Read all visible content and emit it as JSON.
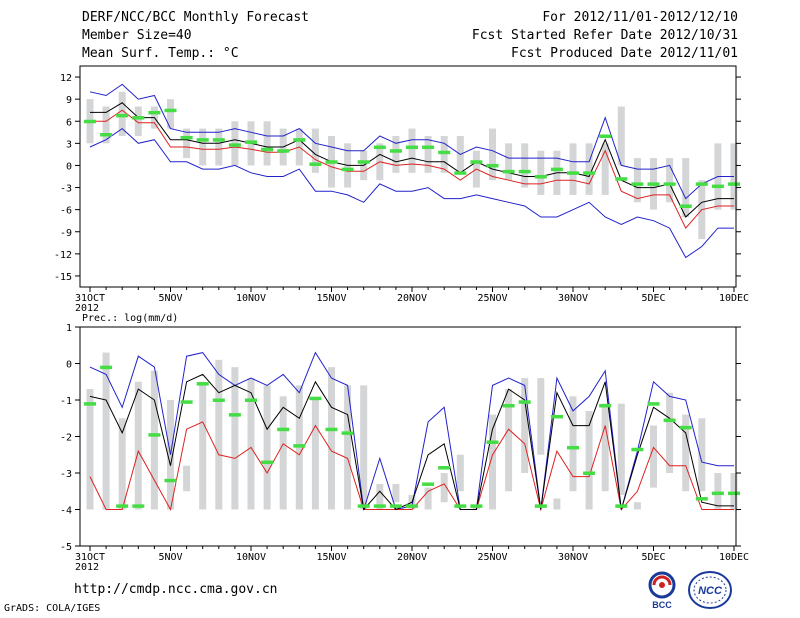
{
  "header": {
    "title": "DERF/NCC/BCC Monthly Forecast",
    "member_size": "Member Size=40",
    "variable": "Mean Surf. Temp.: °C",
    "period": "For 2012/11/01-2012/12/10",
    "refer_date": "Fcst Started Refer Date 2012/10/31",
    "produced_date": "Fcst Produced Date 2012/11/01"
  },
  "footer": {
    "url": "http://cmdp.ncc.cma.gov.cn",
    "grads": "GrADS: COLA/IGES",
    "logo_bcc": "BCC",
    "logo_ncc": "NCC"
  },
  "colors": {
    "box": "#d3d5d7",
    "median": "#44dd44",
    "ensemble_mean": "#000000",
    "lower": "#dd2222",
    "upper": "#2222cc"
  },
  "chart_data": [
    {
      "type": "box",
      "title": "Mean Surf. Temp.: °C",
      "xlabel": "",
      "ylabel": "",
      "ylim": [
        -16.5,
        13.5
      ],
      "yticks": [
        12,
        9,
        6,
        3,
        0,
        -3,
        -6,
        -9,
        -12,
        -15
      ],
      "x_ticks": [
        {
          "day": 0,
          "label": "31OCT"
        },
        {
          "day": 5,
          "label": "5NOV"
        },
        {
          "day": 10,
          "label": "10NOV"
        },
        {
          "day": 15,
          "label": "15NOV"
        },
        {
          "day": 20,
          "label": "20NOV"
        },
        {
          "day": 25,
          "label": "25NOV"
        },
        {
          "day": 30,
          "label": "30NOV"
        },
        {
          "day": 35,
          "label": "5DEC"
        },
        {
          "day": 40,
          "label": "10DEC"
        }
      ],
      "year_label": "2012",
      "box_low": [
        3,
        3,
        4,
        4,
        5,
        5,
        1,
        0,
        0,
        0,
        0,
        0,
        0,
        0,
        -1,
        -3,
        -3,
        -2,
        -2,
        -1,
        -1,
        -1,
        -1,
        -1,
        -3,
        -2,
        -2,
        -3,
        -4,
        -4,
        -4,
        -4,
        -4,
        0,
        -5,
        -6,
        -5,
        -7,
        -10,
        -6,
        -6
      ],
      "box_high": [
        9,
        8,
        10,
        8,
        8,
        9,
        5,
        5,
        5,
        6,
        6,
        6,
        5,
        5,
        5,
        4,
        3,
        2,
        3,
        4,
        5,
        4,
        4,
        4,
        2,
        5,
        3,
        3,
        2,
        2,
        3,
        3,
        3,
        8,
        1,
        1,
        1,
        1,
        -2,
        3,
        3
      ],
      "median": [
        6,
        4.2,
        6.8,
        6.5,
        7.2,
        7.5,
        3.8,
        3.5,
        3.5,
        2.8,
        3.2,
        2.2,
        2,
        3.5,
        0.2,
        0.5,
        -0.5,
        0.5,
        2.5,
        2,
        2.5,
        2.5,
        1.8,
        -1,
        0.5,
        0,
        -0.8,
        -0.8,
        -1.5,
        -0.5,
        -1,
        -1,
        4,
        -1.8,
        -2.5,
        -2.5,
        -2.5,
        -5.5,
        -2.5,
        -2.8,
        -2.5
      ],
      "mean": [
        7.2,
        7.2,
        8.5,
        6.5,
        6.5,
        3.5,
        3.5,
        3,
        3,
        3.5,
        3,
        2.5,
        2.5,
        3.5,
        1.5,
        0.5,
        0,
        0,
        1.5,
        0.5,
        1,
        0.5,
        0.5,
        -1,
        0.5,
        -0.5,
        -1,
        -1.5,
        -1.5,
        -1,
        -1,
        -1.5,
        3.5,
        -2,
        -3,
        -3,
        -2.5,
        -7,
        -5,
        -4.5,
        -4.5
      ],
      "lower": [
        6,
        6,
        7.5,
        5.8,
        5.8,
        2.5,
        2.5,
        2.2,
        2.2,
        2.5,
        2.2,
        1.8,
        1.8,
        2.5,
        0.8,
        -0.2,
        -0.8,
        -0.8,
        0.5,
        0,
        0.2,
        0,
        -0.5,
        -2,
        -0.5,
        -1.5,
        -2,
        -2.5,
        -2.5,
        -2,
        -2,
        -2.5,
        2,
        -3.5,
        -4.5,
        -4,
        -4,
        -8.5,
        -6,
        -5.5,
        -5.5
      ],
      "upper": [
        10,
        9.5,
        11,
        9,
        9.5,
        5,
        4.5,
        4.5,
        4.5,
        5,
        4.5,
        4,
        4,
        5,
        3,
        2.5,
        2,
        2,
        4,
        3,
        3.5,
        3.5,
        3,
        1.5,
        2.5,
        2,
        1,
        1,
        1,
        1,
        0.5,
        0.5,
        6.5,
        0,
        -0.5,
        -0.5,
        0,
        -4.5,
        -2.5,
        -1.5,
        -1.5
      ],
      "min": [
        2.5,
        3.5,
        5,
        3,
        3.5,
        0.5,
        0.5,
        -0.5,
        -0.5,
        0,
        -1,
        -1.5,
        -1.5,
        -0.5,
        -3.5,
        -3.5,
        -4,
        -5,
        -2.5,
        -3.5,
        -3.5,
        -3,
        -4.5,
        -4.5,
        -4,
        -4.5,
        -5,
        -5.5,
        -7,
        -7,
        -6,
        -5,
        -7,
        -8,
        -7,
        -7.5,
        -8.5,
        -12.5,
        -11,
        -8.5,
        -8.5
      ]
    },
    {
      "type": "box",
      "title": "Prec.: log(mm/d)",
      "xlabel": "",
      "ylabel": "",
      "ylim": [
        -5,
        1
      ],
      "yticks": [
        1,
        0,
        -1,
        -2,
        -3,
        -4,
        -5
      ],
      "x_ticks": [
        {
          "day": 0,
          "label": "31OCT"
        },
        {
          "day": 5,
          "label": "5NOV"
        },
        {
          "day": 10,
          "label": "10NOV"
        },
        {
          "day": 15,
          "label": "15NOV"
        },
        {
          "day": 20,
          "label": "20NOV"
        },
        {
          "day": 25,
          "label": "25NOV"
        },
        {
          "day": 30,
          "label": "30NOV"
        },
        {
          "day": 35,
          "label": "5DEC"
        },
        {
          "day": 40,
          "label": "10DEC"
        }
      ],
      "year_label": "2012",
      "box_low": [
        -4,
        -4,
        -4,
        -4,
        -4,
        -4,
        -3.5,
        -4,
        -4,
        -4,
        -4,
        -4,
        -4,
        -4,
        -4,
        -4,
        -4,
        -4,
        -4,
        -3.8,
        -4,
        -4,
        -3.8,
        -3.5,
        -4,
        -4,
        -3.5,
        -3,
        -2.5,
        -4,
        -3.5,
        -4,
        -3.5,
        -3.6,
        -4,
        -3.4,
        -3,
        -3.5,
        -3.5,
        -4,
        -4
      ],
      "box_high": [
        -0.7,
        0.3,
        -1.5,
        -0.5,
        -0.2,
        -1,
        -2.8,
        -0.5,
        0.1,
        -0.1,
        -0.4,
        -0.6,
        -0.9,
        -0.6,
        -1,
        -0.1,
        -0.6,
        -0.6,
        -3.3,
        -3.3,
        -3.6,
        -3.4,
        -3,
        -2.5,
        -3.9,
        -1.4,
        -0.7,
        -0.4,
        -0.4,
        -3.7,
        -0.9,
        -1.3,
        -1.1,
        -1.1,
        -3.8,
        -1.7,
        -0.8,
        -1.4,
        -1.5,
        -3,
        -3
      ],
      "median": [
        -1.1,
        -0.1,
        -3.9,
        -3.9,
        -1.95,
        -3.2,
        -1.05,
        -0.55,
        -1,
        -1.4,
        -1.0,
        -2.7,
        -1.8,
        -2.25,
        -0.95,
        -1.8,
        -1.9,
        -3.9,
        -3.9,
        -3.9,
        -3.9,
        -3.3,
        -2.85,
        -3.9,
        -3.9,
        -2.15,
        -1.15,
        -1.05,
        -3.9,
        -1.45,
        -2.3,
        -3.0,
        -1.15,
        -3.9,
        -2.35,
        -1.1,
        -1.55,
        -1.75,
        -3.7,
        -3.55,
        -3.55
      ],
      "mean": [
        -0.9,
        -1,
        -1.9,
        -0.7,
        -1,
        -2.8,
        -0.5,
        -0.3,
        -0.8,
        -0.6,
        -0.8,
        -1.8,
        -1.2,
        -1.5,
        -0.5,
        -1.2,
        -1.4,
        -4,
        -3.5,
        -4,
        -3.8,
        -2.5,
        -2.2,
        -4,
        -4,
        -1.8,
        -0.7,
        -1,
        -4,
        -0.8,
        -1.7,
        -1.7,
        -0.5,
        -4,
        -2.5,
        -1.2,
        -1.5,
        -1.9,
        -3.8,
        -3.9,
        -3.9
      ],
      "lower": [
        -3.1,
        -4,
        -4,
        -2.4,
        -3.2,
        -4,
        -1.8,
        -1.6,
        -2.5,
        -2.6,
        -2.3,
        -3.0,
        -2.2,
        -2.5,
        -1.7,
        -2.4,
        -2.6,
        -4,
        -4,
        -4,
        -4,
        -3.5,
        -3.3,
        -4,
        -4,
        -2.5,
        -1.8,
        -2.2,
        -4,
        -2.4,
        -3.1,
        -3.1,
        -1.7,
        -4,
        -3.5,
        -2.3,
        -2.8,
        -2.8,
        -4,
        -4,
        -4
      ],
      "upper": [
        -0.1,
        -0.3,
        -1.2,
        0.2,
        -0.1,
        -2.5,
        0.2,
        0.3,
        -0.3,
        -0.6,
        -0.4,
        -0.6,
        -0.3,
        -0.8,
        0.3,
        -0.4,
        -0.6,
        -4,
        -2.6,
        -4,
        -3.9,
        -1.6,
        -1.2,
        -4,
        -4,
        -0.6,
        -0.4,
        -0.6,
        -4,
        -0.4,
        -1.3,
        -0.9,
        -0.2,
        -4,
        -2.4,
        -0.5,
        -0.9,
        -1.0,
        -2.7,
        -2.8,
        -2.8
      ]
    }
  ]
}
